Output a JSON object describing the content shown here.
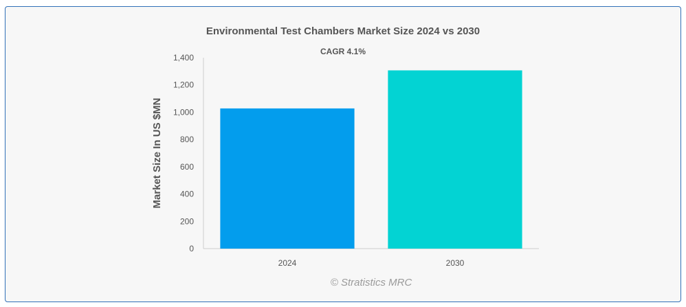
{
  "chart_data": {
    "type": "bar",
    "title": "Environmental Test Chambers Market Size 2024 vs 2030",
    "subtitle": "CAGR 4.1%",
    "xlabel": "",
    "ylabel": "Market Size In US $MN",
    "categories": [
      "2024",
      "2030"
    ],
    "values": [
      1028,
      1307
    ],
    "colors": [
      "#039ded",
      "#03d3d3"
    ],
    "ylim": [
      0,
      1400
    ],
    "yticks": [
      0,
      200,
      400,
      600,
      800,
      1000,
      1200,
      1400
    ],
    "ytick_labels": [
      "0",
      "200",
      "400",
      "600",
      "800",
      "1,000",
      "1,200",
      "1,400"
    ],
    "grid": false,
    "credit": "© Stratistics MRC"
  }
}
